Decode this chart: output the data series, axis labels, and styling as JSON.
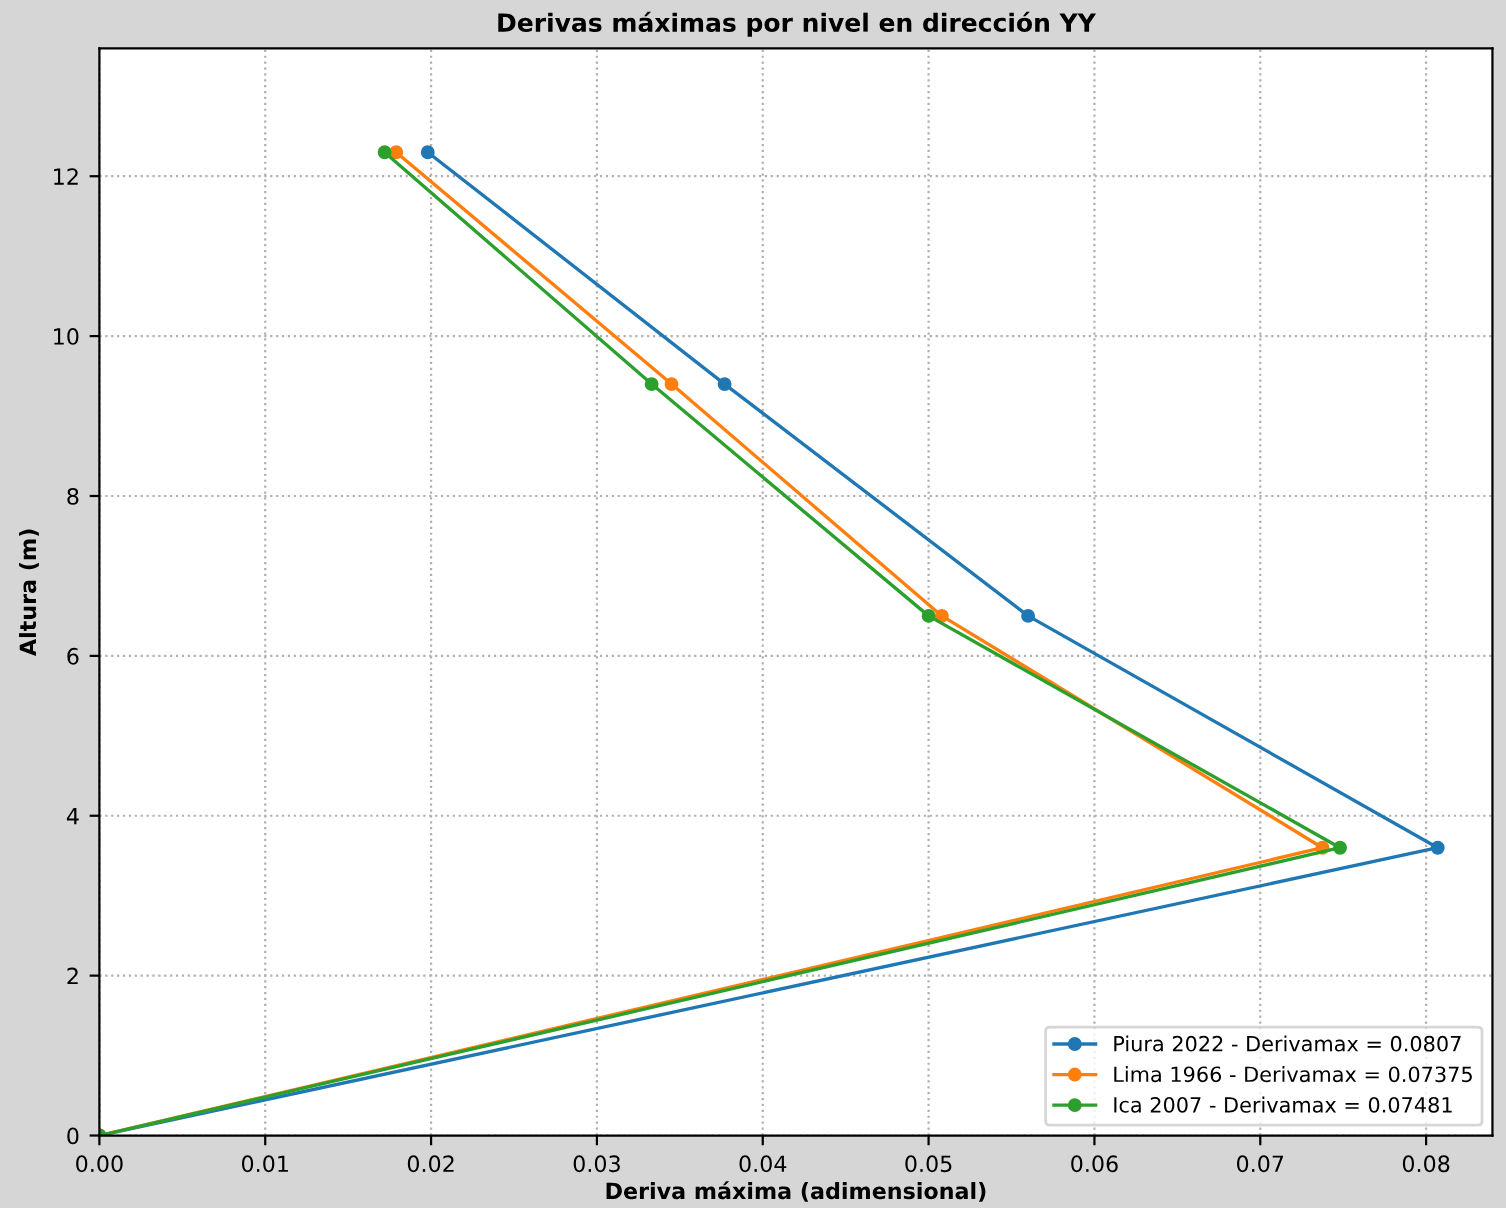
{
  "chart_data": {
    "type": "line",
    "title": "Derivas máximas por nivel en dirección YY",
    "xlabel": "Deriva máxima (adimensional)",
    "ylabel": "Altura (m)",
    "x": [
      0,
      3.6,
      6.5,
      9.4,
      12.3
    ],
    "orientation": "horizontal",
    "series": [
      {
        "name": "Piura 2022 - Derivamax = 0.0807",
        "color": "#1f77b4",
        "values": [
          0,
          0.0807,
          0.056,
          0.0377,
          0.0198
        ]
      },
      {
        "name": "Lima 1966 - Derivamax = 0.07375",
        "color": "#ff7f0e",
        "values": [
          0,
          0.07375,
          0.0508,
          0.0345,
          0.0179
        ]
      },
      {
        "name": "Ica 2007 - Derivamax = 0.07481",
        "color": "#2ca02c",
        "values": [
          0,
          0.07481,
          0.05,
          0.0333,
          0.0172
        ]
      }
    ],
    "xlim": [
      0,
      0.084
    ],
    "xticks": [
      {
        "value": 0,
        "label": "0.00"
      },
      0.01,
      0.02,
      0.03,
      0.04,
      0.05,
      0.06,
      0.07,
      0.08
    ],
    "ylim": [
      0,
      13.6
    ],
    "yticks": [
      0,
      2,
      4,
      6,
      8,
      10,
      12
    ],
    "grid": true,
    "legend": "bottom right",
    "marker": "circle",
    "line_style": "solid"
  }
}
